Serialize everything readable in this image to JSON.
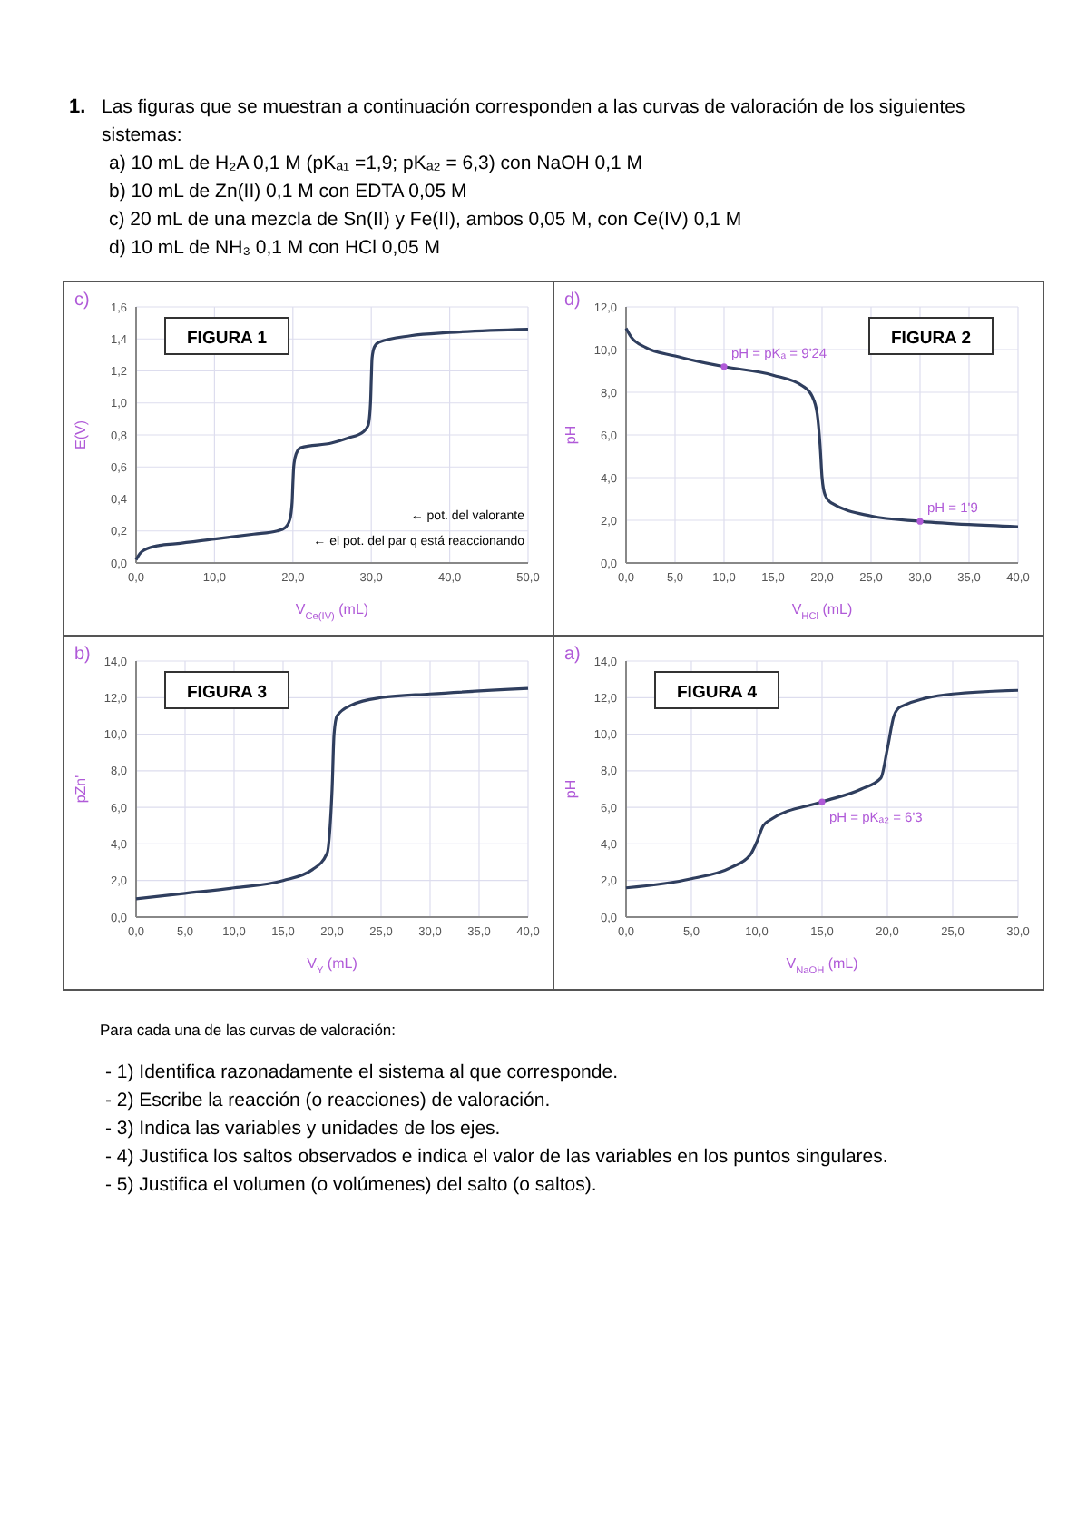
{
  "chart_data": [
    {
      "type": "other",
      "annotations": [
        "1.",
        "Las figuras que se muestran a continuación corresponden a las curvas de valoración de los siguientes",
        "sistemas:",
        "a)  10 mL de H₂A 0,1 M (pKₐ₁ =1,9; pKₐ₂ = 6,3) con NaOH 0,1 M",
        "b)  10 mL de Zn(II) 0,1 M  con EDTA 0,05 M",
        "c)  20 mL de una mezcla de Sn(II) y Fe(II), ambos 0,05 M, con Ce(IV) 0,1 M",
        "d)  10 mL de NH₃ 0,1 M con HCl 0,05 M"
      ]
    },
    {
      "type": "line",
      "title": "FIGURA 1",
      "xlabel": "V$_{Ce(IV)}$ (mL)",
      "ylabel": "E(V)",
      "xlim": [
        0,
        50
      ],
      "ylim": [
        0,
        1.6
      ],
      "xticks": [
        {
          "value": 0,
          "label": "0,0"
        },
        {
          "value": 10,
          "label": "10,0"
        },
        {
          "value": 20,
          "label": "20,0"
        },
        {
          "value": 30,
          "label": "30,0"
        },
        {
          "value": 40,
          "label": "40,0"
        },
        {
          "value": 50,
          "label": "50,0"
        }
      ],
      "yticks": [
        {
          "value": 0,
          "label": "0,0"
        },
        {
          "value": 0.2,
          "label": "0,2"
        },
        {
          "value": 0.4,
          "label": "0,4"
        },
        {
          "value": 0.6,
          "label": "0,6"
        },
        {
          "value": 0.8,
          "label": "0,8"
        },
        {
          "value": 1,
          "label": "1,0"
        },
        {
          "value": 1.2,
          "label": "1,2"
        },
        {
          "value": 1.4,
          "label": "1,4"
        },
        {
          "value": 1.6,
          "label": "1,6"
        }
      ],
      "grid": true,
      "marker": "none",
      "line_style": "solid",
      "series": [
        {
          "color": "#2f3e5e",
          "x": [
            0,
            0.5,
            1,
            3,
            5,
            10,
            15,
            18,
            19,
            19.6,
            19.9,
            20,
            20.1,
            20.4,
            21,
            25,
            27,
            29,
            29.6,
            29.9,
            30,
            30.1,
            30.4,
            31,
            35,
            40,
            50
          ],
          "values": [
            0.02,
            0.06,
            0.08,
            0.11,
            0.12,
            0.15,
            0.18,
            0.2,
            0.22,
            0.27,
            0.38,
            0.5,
            0.6,
            0.68,
            0.72,
            0.75,
            0.78,
            0.82,
            0.86,
            1.0,
            1.15,
            1.28,
            1.35,
            1.38,
            1.42,
            1.44,
            1.46
          ]
        }
      ],
      "annotations": [
        "c)",
        "← pot. del valorante",
        "← el pot. del par q está reaccionando"
      ]
    },
    {
      "type": "line",
      "title": "FIGURA 2",
      "xlabel": "V$_{HCl}$ (mL)",
      "ylabel": "pH",
      "xlim": [
        0,
        40
      ],
      "ylim": [
        0,
        12
      ],
      "xticks": [
        {
          "value": 0,
          "label": "0,0"
        },
        {
          "value": 5,
          "label": "5,0"
        },
        {
          "value": 10,
          "label": "10,0"
        },
        {
          "value": 15,
          "label": "15,0"
        },
        {
          "value": 20,
          "label": "20,0"
        },
        {
          "value": 25,
          "label": "25,0"
        },
        {
          "value": 30,
          "label": "30,0"
        },
        {
          "value": 35,
          "label": "35,0"
        },
        {
          "value": 40,
          "label": "40,0"
        }
      ],
      "yticks": [
        {
          "value": 0,
          "label": "0,0"
        },
        {
          "value": 2,
          "label": "2,0"
        },
        {
          "value": 4,
          "label": "4,0"
        },
        {
          "value": 6,
          "label": "6,0"
        },
        {
          "value": 8,
          "label": "8,0"
        },
        {
          "value": 10,
          "label": "10,0"
        },
        {
          "value": 12,
          "label": "12,0"
        }
      ],
      "grid": true,
      "marker": "none",
      "line_style": "solid",
      "series": [
        {
          "color": "#2f3e5e",
          "x": [
            0,
            0.5,
            2,
            5,
            10,
            15,
            18,
            19,
            19.5,
            19.8,
            20,
            20.3,
            21,
            25,
            30,
            35,
            40
          ],
          "values": [
            11.0,
            10.6,
            10.1,
            9.7,
            9.2,
            8.8,
            8.3,
            7.8,
            7.0,
            5.5,
            4.0,
            3.2,
            2.8,
            2.2,
            1.95,
            1.8,
            1.7
          ]
        }
      ],
      "annotations": [
        "d)",
        {
          "text": "pH = pKₐ = 9'24",
          "x": 10,
          "y": 9.2
        },
        {
          "text": "pH = 1'9",
          "x": 30,
          "y": 1.95
        }
      ]
    },
    {
      "type": "line",
      "title": "FIGURA 3",
      "xlabel": "V$_{Y}$ (mL)",
      "ylabel": "pZn'",
      "xlim": [
        0,
        40
      ],
      "ylim": [
        0,
        14
      ],
      "xticks": [
        {
          "value": 0,
          "label": "0,0"
        },
        {
          "value": 5,
          "label": "5,0"
        },
        {
          "value": 10,
          "label": "10,0"
        },
        {
          "value": 15,
          "label": "15,0"
        },
        {
          "value": 20,
          "label": "20,0"
        },
        {
          "value": 25,
          "label": "25,0"
        },
        {
          "value": 30,
          "label": "30,0"
        },
        {
          "value": 35,
          "label": "35,0"
        },
        {
          "value": 40,
          "label": "40,0"
        }
      ],
      "yticks": [
        {
          "value": 0,
          "label": "0,0"
        },
        {
          "value": 2,
          "label": "2,0"
        },
        {
          "value": 4,
          "label": "4,0"
        },
        {
          "value": 6,
          "label": "6,0"
        },
        {
          "value": 8,
          "label": "8,0"
        },
        {
          "value": 10,
          "label": "10,0"
        },
        {
          "value": 12,
          "label": "12,0"
        },
        {
          "value": 14,
          "label": "14,0"
        }
      ],
      "grid": true,
      "marker": "none",
      "line_style": "solid",
      "series": [
        {
          "color": "#2f3e5e",
          "x": [
            0,
            5,
            10,
            15,
            18,
            19.5,
            19.8,
            20,
            20.2,
            20.5,
            22,
            25,
            30,
            40
          ],
          "values": [
            1.0,
            1.3,
            1.6,
            2.0,
            2.6,
            3.5,
            5.0,
            7.0,
            10.0,
            11.0,
            11.6,
            12.0,
            12.2,
            12.5
          ]
        }
      ],
      "annotations": [
        "b)"
      ]
    },
    {
      "type": "line",
      "title": "FIGURA 4",
      "xlabel": "V$_{NaOH}$ (mL)",
      "ylabel": "pH",
      "xlim": [
        0,
        30
      ],
      "ylim": [
        0,
        14
      ],
      "xticks": [
        {
          "value": 0,
          "label": "0,0"
        },
        {
          "value": 5,
          "label": "5,0"
        },
        {
          "value": 10,
          "label": "10,0"
        },
        {
          "value": 15,
          "label": "15,0"
        },
        {
          "value": 20,
          "label": "20,0"
        },
        {
          "value": 25,
          "label": "25,0"
        },
        {
          "value": 30,
          "label": "30,0"
        }
      ],
      "yticks": [
        {
          "value": 0,
          "label": "0,0"
        },
        {
          "value": 2,
          "label": "2,0"
        },
        {
          "value": 4,
          "label": "4,0"
        },
        {
          "value": 6,
          "label": "6,0"
        },
        {
          "value": 8,
          "label": "8,0"
        },
        {
          "value": 10,
          "label": "10,0"
        },
        {
          "value": 12,
          "label": "12,0"
        },
        {
          "value": 14,
          "label": "14,0"
        }
      ],
      "grid": true,
      "marker": "none",
      "line_style": "solid",
      "series": [
        {
          "color": "#2f3e5e",
          "x": [
            0,
            5,
            8,
            9.5,
            10,
            10.5,
            11,
            15,
            18,
            19.5,
            20,
            20.5,
            21,
            25,
            30
          ],
          "values": [
            1.6,
            2.1,
            2.7,
            3.4,
            4.1,
            5.0,
            5.3,
            6.3,
            7.0,
            7.6,
            9.2,
            11.0,
            11.5,
            12.2,
            12.4
          ]
        }
      ],
      "annotations": [
        "a)",
        {
          "text": "pH = pKₐ₂ = 6'3",
          "x": 15,
          "y": 6.3
        }
      ]
    },
    {
      "type": "other",
      "annotations": [
        "Para cada una de las curvas de valoración:",
        "- 1) Identifica razonadamente el sistema al que corresponde.",
        "- 2) Escribe la reacción (o reacciones) de valoración.",
        "- 3) Indica las variables y unidades de los ejes.",
        "- 4) Justifica los saltos observados e indica el valor de las variables en los puntos singulares.",
        "- 5) Justifica el volumen (o volúmenes) del salto (o saltos)."
      ]
    }
  ]
}
